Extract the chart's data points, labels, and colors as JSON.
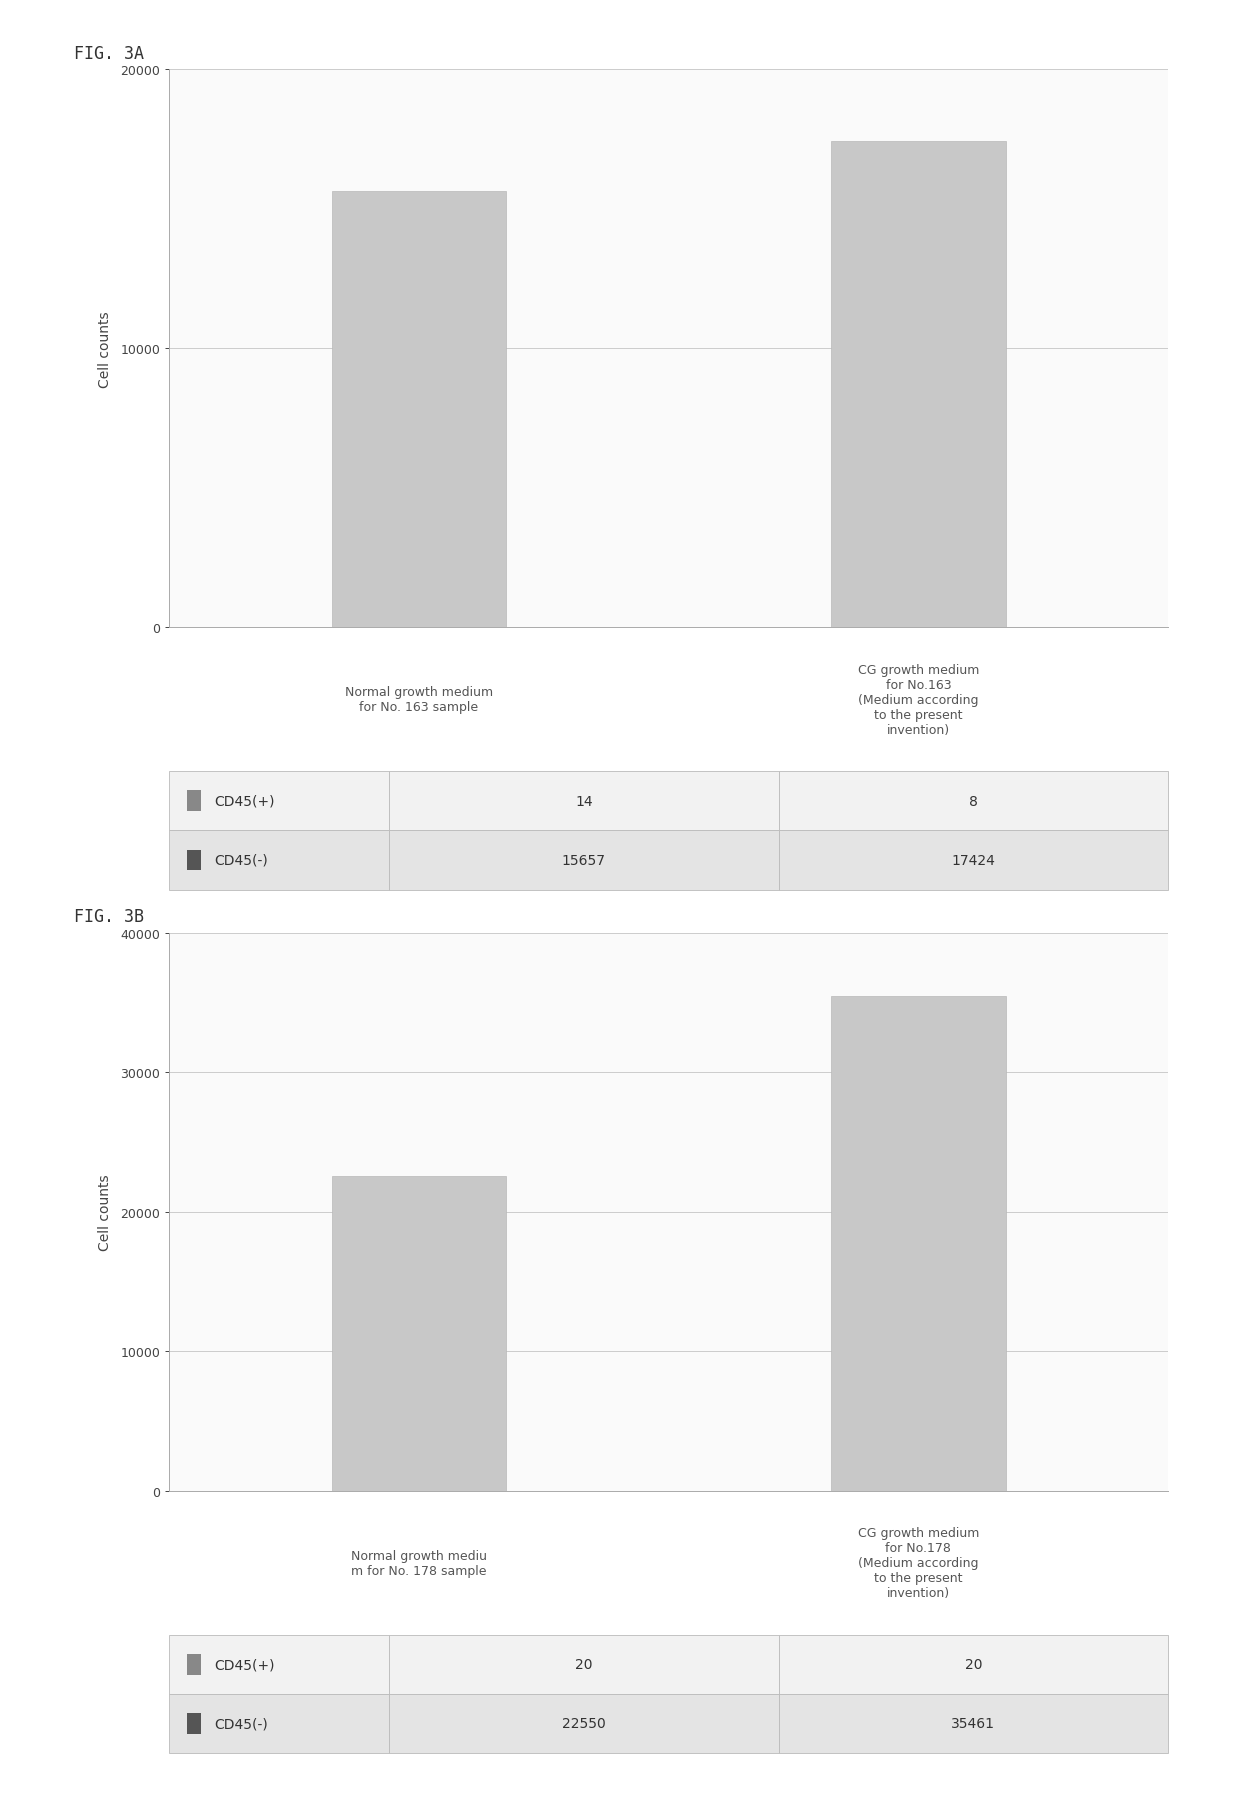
{
  "fig3a": {
    "fig_label": "FIG. 3A",
    "categories": [
      "Normal growth medium\nfor No. 163 sample",
      "CG growth medium\nfor No.163\n(Medium according\nto the present\ninvention)"
    ],
    "cd45_neg_values": [
      15657,
      17424
    ],
    "ylim": [
      0,
      20000
    ],
    "yticks": [
      0,
      10000,
      20000
    ],
    "ylabel": "Cell counts",
    "table_rows": [
      [
        "■ CD45(+)",
        "14",
        "8"
      ],
      [
        "■ CD45(-)",
        "15657",
        "17424"
      ]
    ]
  },
  "fig3b": {
    "fig_label": "FIG. 3B",
    "categories": [
      "Normal growth mediu\nm for No. 178 sample",
      "CG growth medium\nfor No.178\n(Medium according\nto the present\ninvention)"
    ],
    "cd45_neg_values": [
      22550,
      35461
    ],
    "ylim": [
      0,
      40000
    ],
    "yticks": [
      0,
      10000,
      20000,
      30000,
      40000
    ],
    "ylabel": "Cell counts",
    "table_rows": [
      [
        "■ CD45(+)",
        "20",
        "20"
      ],
      [
        "■ CD45(-)",
        "22550",
        "35461"
      ]
    ]
  },
  "bar_color": "#c8c8c8",
  "bg_color": "#ffffff",
  "chart_bg": "#fafafa",
  "grid_color": "#cccccc",
  "table_row0_bg": "#f2f2f2",
  "table_row1_bg": "#e4e4e4",
  "table_edge_color": "#bbbbbb",
  "fig_label_fontsize": 12,
  "axis_label_fontsize": 10,
  "tick_fontsize": 9,
  "table_fontsize": 10,
  "cat_label_fontsize": 9,
  "label_color0": "#555555",
  "label_color1": "#555555"
}
